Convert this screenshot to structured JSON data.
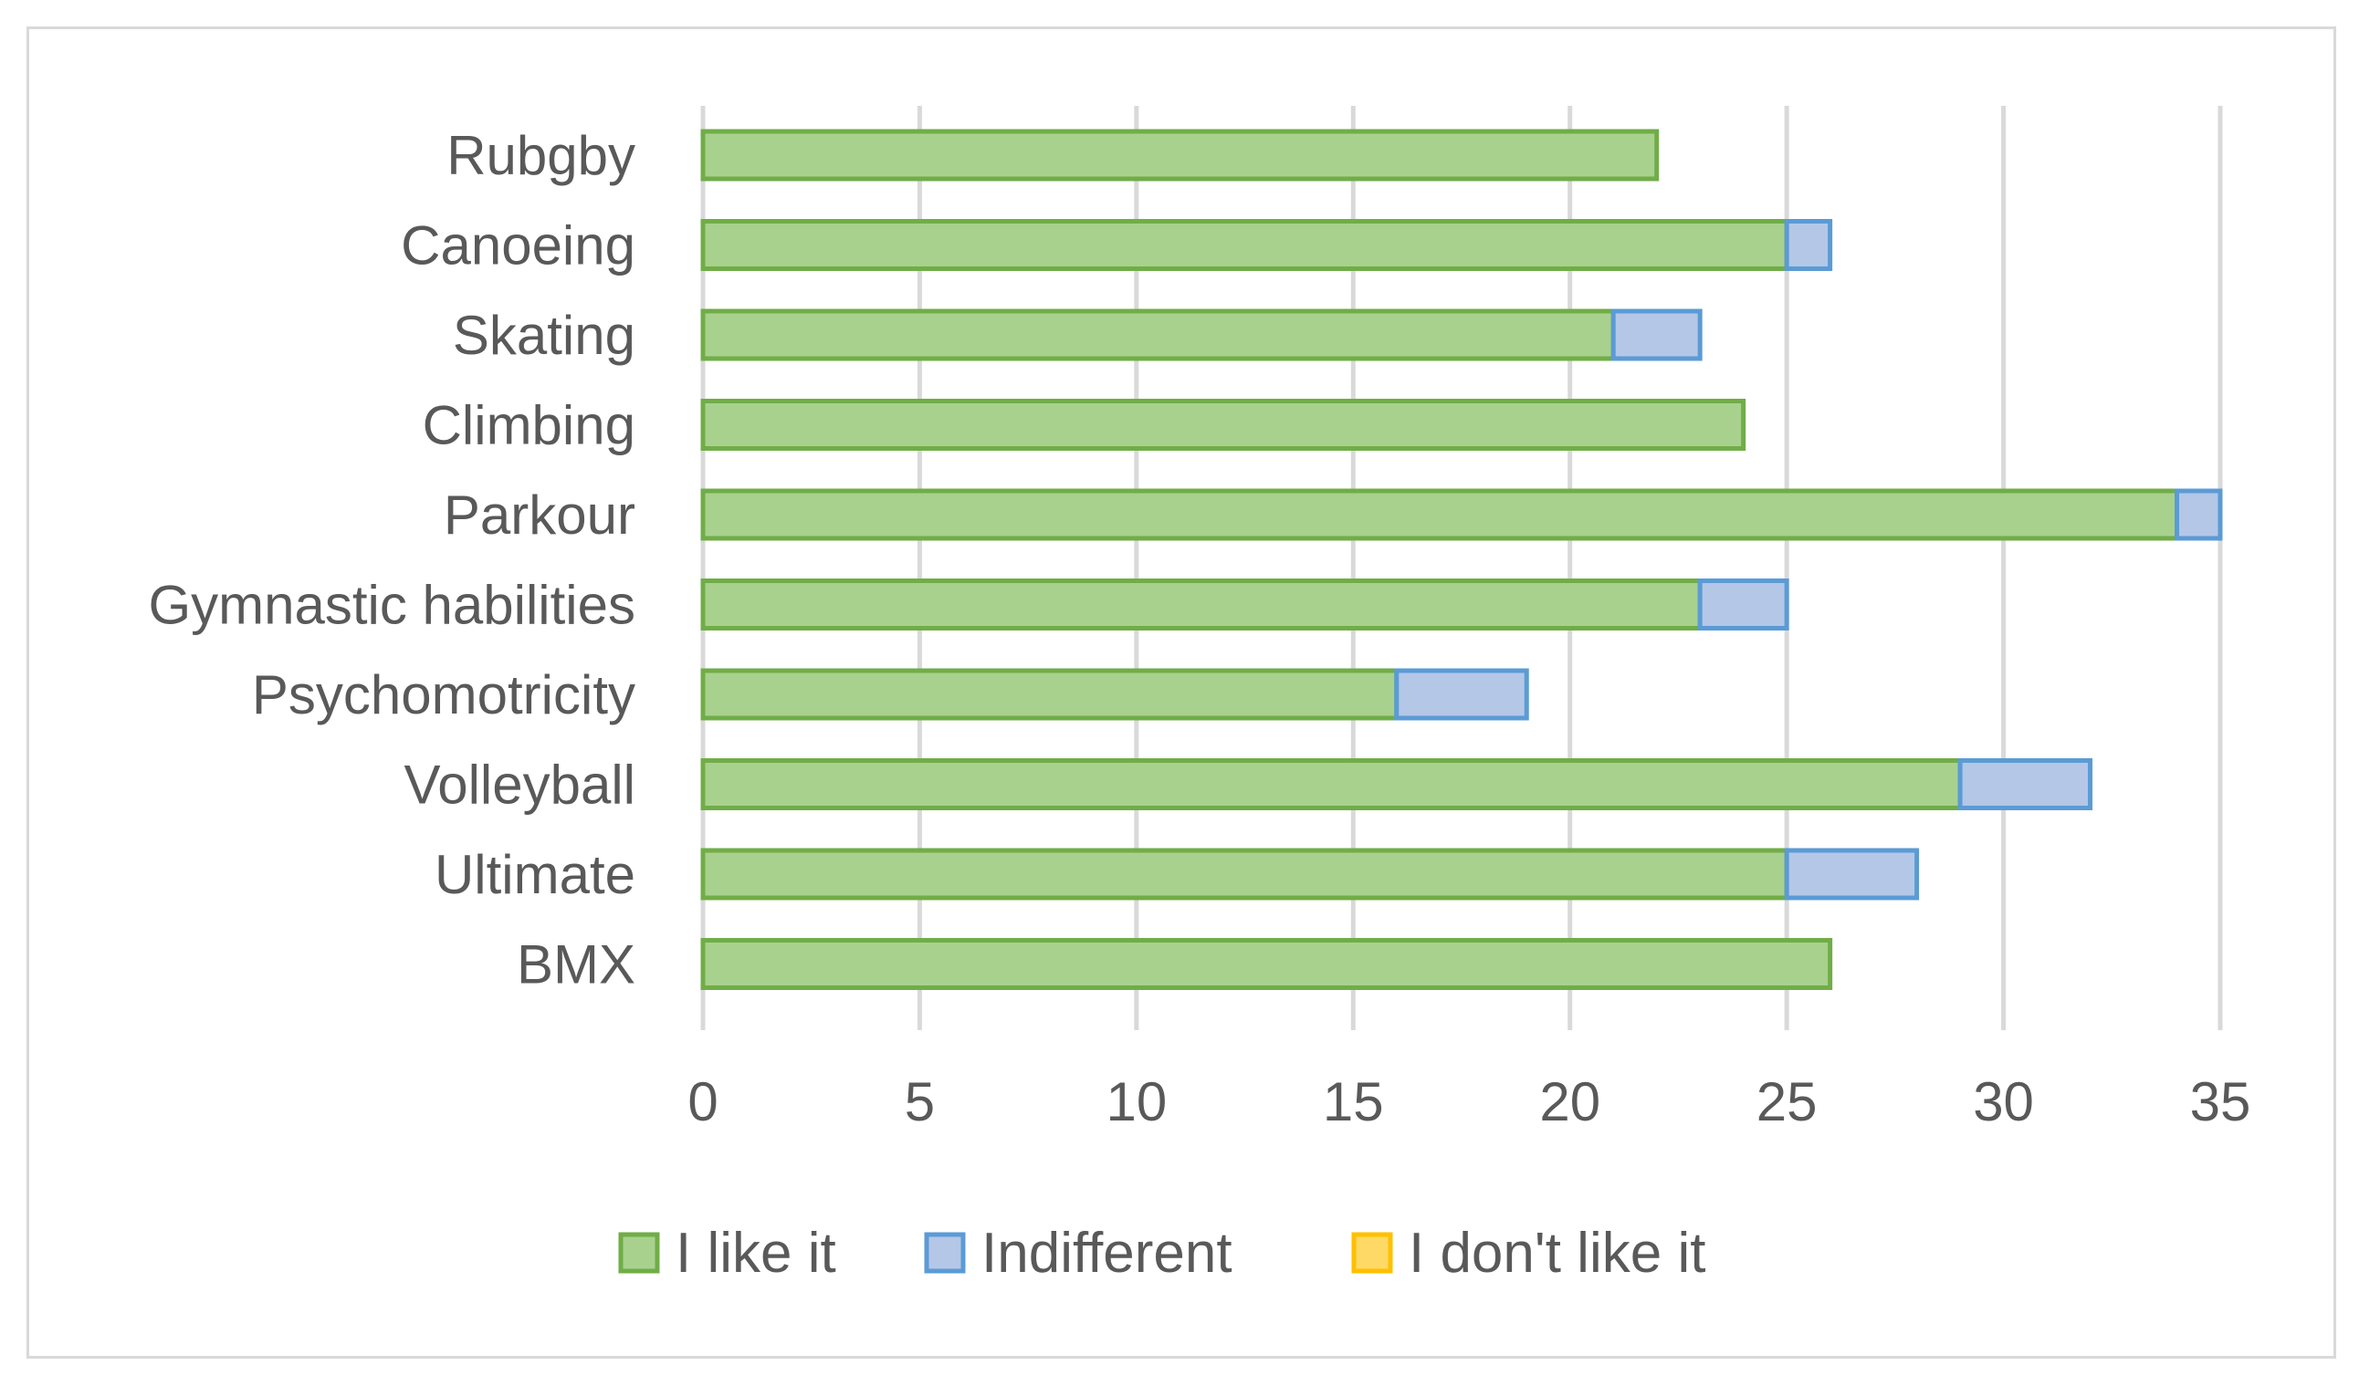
{
  "chart_data": {
    "type": "bar",
    "orientation": "horizontal",
    "stacked": true,
    "categories": [
      "Rubgby",
      "Canoeing",
      "Skating",
      "Climbing",
      "Parkour",
      "Gymnastic habilities",
      "Psychomotricity",
      "Volleyball",
      "Ultimate ",
      "BMX"
    ],
    "series": [
      {
        "name": "I like it",
        "color": "#70ad47",
        "fill": "#a9d18e",
        "values": [
          22,
          25,
          21,
          24,
          34,
          23,
          16,
          29,
          25,
          26
        ]
      },
      {
        "name": "Indifferent",
        "color": "#5b9bd5",
        "fill": "#b4c7e7",
        "values": [
          0,
          1,
          2,
          0,
          1,
          2,
          3,
          3,
          3,
          0
        ]
      },
      {
        "name": "I don't like it",
        "color": "#ffc000",
        "fill": "#ffd966",
        "values": [
          0,
          0,
          0,
          0,
          0,
          0,
          0,
          0,
          0,
          0
        ]
      }
    ],
    "xlim": [
      0,
      35
    ],
    "xticks": [
      "0",
      "5",
      "10",
      "15",
      "20",
      "25",
      "30",
      "35"
    ],
    "grid": true,
    "legend_position": "bottom",
    "title": "",
    "xlabel": "",
    "ylabel": ""
  }
}
